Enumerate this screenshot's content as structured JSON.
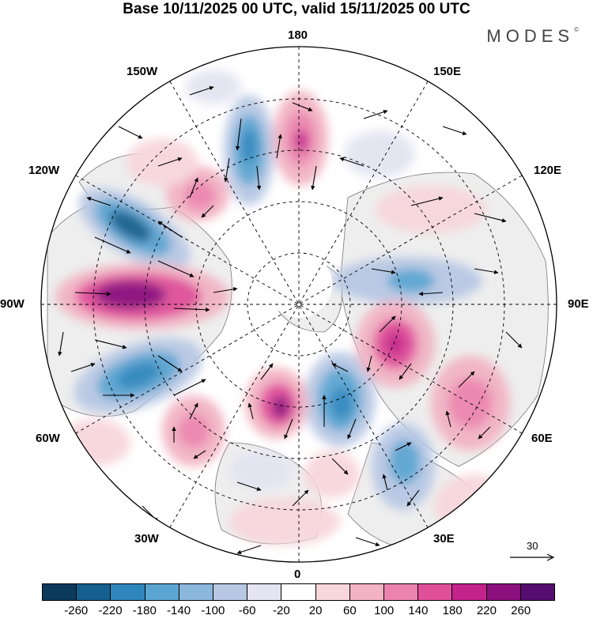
{
  "title": "Base 10/11/2025 00 UTC, valid 15/11/2025 00 UTC",
  "brand": "MODES",
  "brand_mark": "©",
  "longitude_labels": {
    "l180": "180",
    "l150e": "150E",
    "l120e": "120E",
    "l90e": "90E",
    "l60e": "60E",
    "l30e": "30E",
    "l0": "0",
    "l30w": "30W",
    "l60w": "60W",
    "l90w": "90W",
    "l120w": "120W",
    "l150w": "150W"
  },
  "reference_vector": {
    "value": "30",
    "icon": "arrow-right-icon"
  },
  "colorbar": {
    "ticks": [
      "-260",
      "-220",
      "-180",
      "-140",
      "-100",
      "-60",
      "-20",
      "20",
      "60",
      "100",
      "140",
      "180",
      "220",
      "260"
    ],
    "colors": [
      "#0b3a5c",
      "#15608f",
      "#2f86bd",
      "#5ba5d2",
      "#8cb7dc",
      "#b8c8e4",
      "#e4e4f2",
      "#ffffff",
      "#f7d6dc",
      "#f2b3c4",
      "#eb84ad",
      "#e0509a",
      "#c4238b",
      "#8c0f7e",
      "#560d70"
    ]
  },
  "map": {
    "land_color": "#eeeeee",
    "ocean_color": "#ffffff",
    "anomaly_centers": [
      {
        "sign": "negative",
        "value": -220
      },
      {
        "sign": "negative",
        "value": -180
      },
      {
        "sign": "negative",
        "value": -180
      },
      {
        "sign": "negative",
        "value": -140
      },
      {
        "sign": "negative",
        "value": -140
      },
      {
        "sign": "negative",
        "value": -140
      },
      {
        "sign": "negative",
        "value": -100
      },
      {
        "sign": "positive",
        "value": 260
      },
      {
        "sign": "positive",
        "value": 180
      },
      {
        "sign": "positive",
        "value": 180
      },
      {
        "sign": "positive",
        "value": 180
      },
      {
        "sign": "positive",
        "value": 140
      },
      {
        "sign": "positive",
        "value": 140
      },
      {
        "sign": "positive",
        "value": 140
      },
      {
        "sign": "positive",
        "value": 100
      }
    ]
  }
}
